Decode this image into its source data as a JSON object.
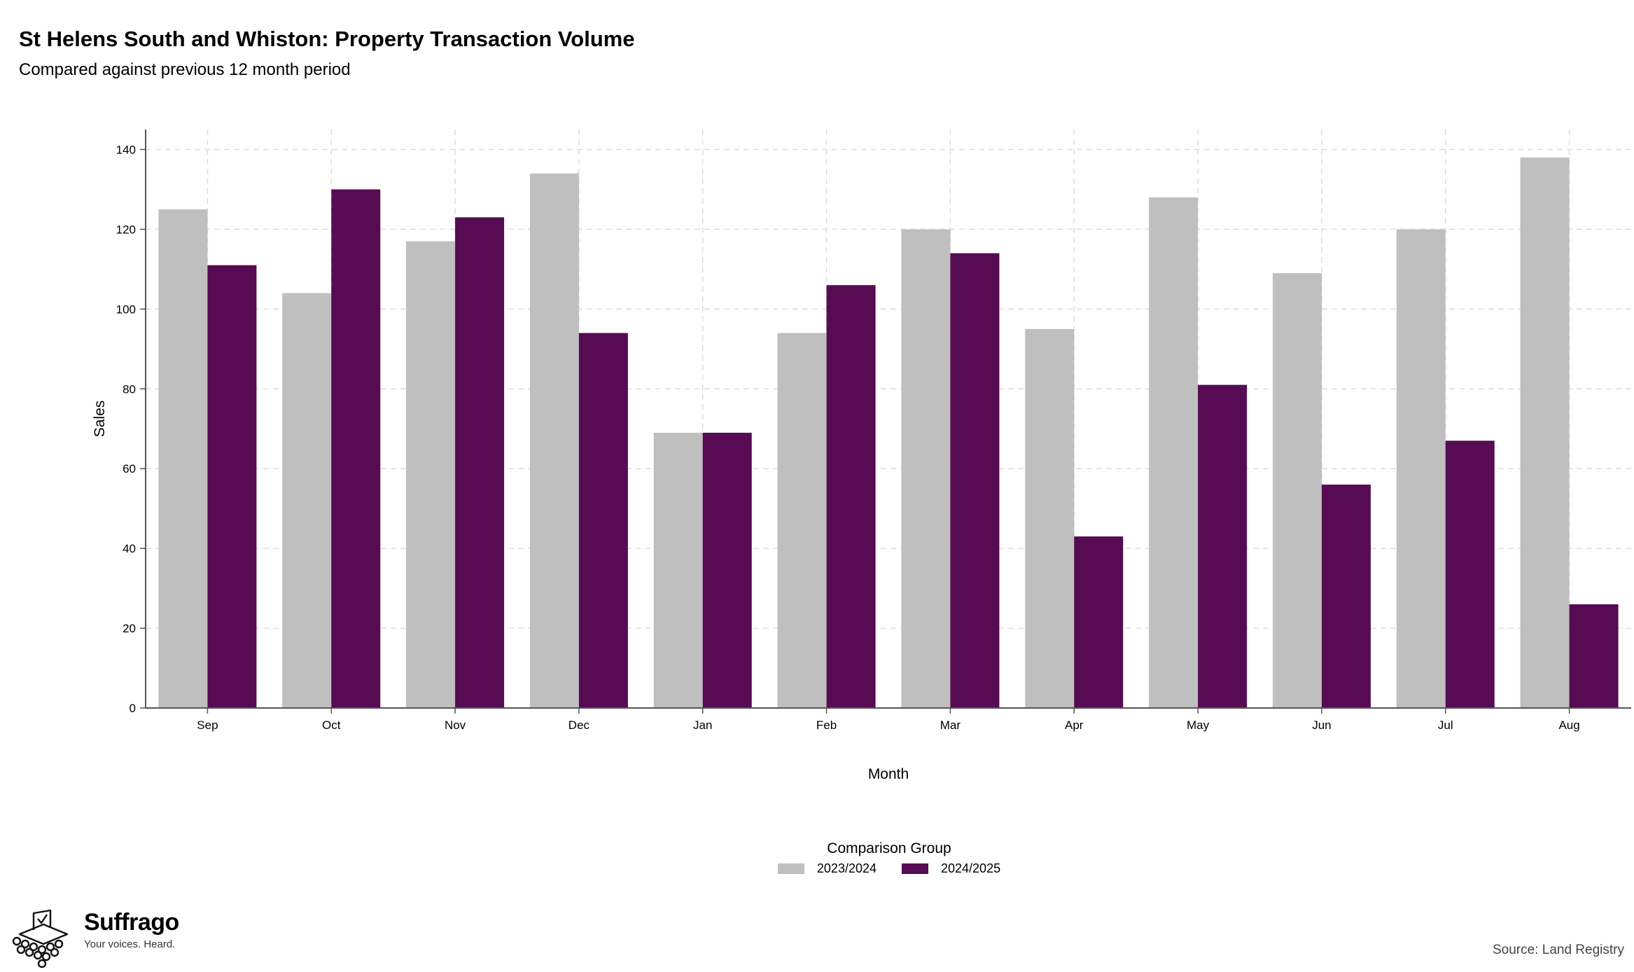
{
  "header": {
    "title": "St Helens South and Whiston: Property Transaction Volume",
    "subtitle": "Compared against previous 12 month period"
  },
  "chart_data": {
    "type": "bar",
    "categories": [
      "Sep",
      "Oct",
      "Nov",
      "Dec",
      "Jan",
      "Feb",
      "Mar",
      "Apr",
      "May",
      "Jun",
      "Jul",
      "Aug"
    ],
    "series": [
      {
        "name": "2023/2024",
        "color": "#bfbfbf",
        "values": [
          125,
          104,
          117,
          134,
          69,
          94,
          120,
          95,
          128,
          109,
          120,
          138
        ]
      },
      {
        "name": "2024/2025",
        "color": "#560b52",
        "values": [
          111,
          130,
          123,
          94,
          69,
          106,
          114,
          43,
          81,
          56,
          67,
          26
        ]
      }
    ],
    "xlabel": "Month",
    "ylabel": "Sales",
    "ylim": [
      0,
      145
    ],
    "yticks": [
      0,
      20,
      40,
      60,
      80,
      100,
      120,
      140
    ],
    "grid": true,
    "legend_title": "Comparison Group",
    "legend_position": "bottom"
  },
  "footer": {
    "brand": "Suffrago",
    "tagline": "Your voices. Heard.",
    "source": "Source: Land Registry"
  }
}
